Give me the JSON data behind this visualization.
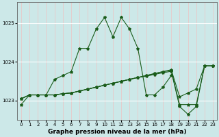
{
  "title": "Graphe pression niveau de la mer (hPa)",
  "bg_color": "#cce8e8",
  "grid_color_v": "#e8c8c8",
  "grid_color_h": "#ffffff",
  "line_color": "#1a5c1a",
  "xlim": [
    -0.5,
    23.5
  ],
  "ylim": [
    1022.5,
    1025.55
  ],
  "yticks": [
    1023,
    1024,
    1025
  ],
  "xticks": [
    0,
    1,
    2,
    3,
    4,
    5,
    6,
    7,
    8,
    9,
    10,
    11,
    12,
    13,
    14,
    15,
    16,
    17,
    18,
    19,
    20,
    21,
    22,
    23
  ],
  "series": [
    {
      "x": [
        0,
        1,
        2,
        3,
        4,
        5,
        6,
        7,
        8,
        9,
        10,
        11,
        12,
        13,
        14,
        15,
        16,
        17,
        18,
        19,
        20,
        21,
        22,
        23
      ],
      "y": [
        1022.9,
        1023.15,
        1023.15,
        1023.15,
        1023.55,
        1023.65,
        1023.75,
        1024.35,
        1024.35,
        1024.85,
        1025.15,
        1024.65,
        1025.15,
        1024.85,
        1024.35,
        1023.15,
        1023.15,
        1023.35,
        1023.65,
        null,
        null,
        null,
        null,
        null
      ]
    },
    {
      "x": [
        0,
        1,
        2,
        3,
        4,
        5,
        6,
        7,
        8,
        9,
        10,
        11,
        12,
        13,
        14,
        15,
        16,
        17,
        18,
        19,
        20,
        21,
        22,
        23
      ],
      "y": [
        1023.05,
        1023.15,
        1023.15,
        1023.15,
        1023.15,
        1023.18,
        1023.2,
        1023.25,
        1023.3,
        1023.35,
        1023.4,
        1023.45,
        1023.5,
        1023.55,
        1023.6,
        1023.65,
        1023.7,
        1023.75,
        1023.78,
        1022.9,
        1022.9,
        1022.9,
        1023.9,
        1023.9
      ]
    },
    {
      "x": [
        0,
        1,
        2,
        3,
        4,
        5,
        6,
        7,
        8,
        9,
        10,
        11,
        12,
        13,
        14,
        15,
        16,
        17,
        18,
        19,
        20,
        21,
        22,
        23
      ],
      "y": [
        1023.05,
        1023.15,
        1023.15,
        1023.15,
        1023.15,
        1023.18,
        1023.2,
        1023.25,
        1023.3,
        1023.35,
        1023.4,
        1023.45,
        1023.5,
        1023.55,
        1023.6,
        1023.65,
        1023.7,
        1023.75,
        1023.8,
        1023.1,
        1023.2,
        1023.3,
        1023.9,
        1023.9
      ]
    },
    {
      "x": [
        0,
        1,
        2,
        3,
        4,
        5,
        6,
        7,
        8,
        9,
        10,
        11,
        12,
        13,
        14,
        15,
        16,
        17,
        18,
        19,
        20,
        21,
        22,
        23
      ],
      "y": [
        1023.05,
        1023.15,
        1023.15,
        1023.15,
        1023.15,
        1023.18,
        1023.2,
        1023.25,
        1023.3,
        1023.35,
        1023.4,
        1023.45,
        1023.5,
        1023.55,
        1023.6,
        1023.63,
        1023.68,
        1023.72,
        1023.76,
        1022.85,
        1022.65,
        1022.85,
        1023.9,
        1023.9
      ]
    }
  ],
  "marker": "*",
  "markersize": 3,
  "linewidth": 0.8,
  "tick_fontsize": 5.0,
  "label_fontsize": 6.5,
  "label_fontweight": "bold"
}
